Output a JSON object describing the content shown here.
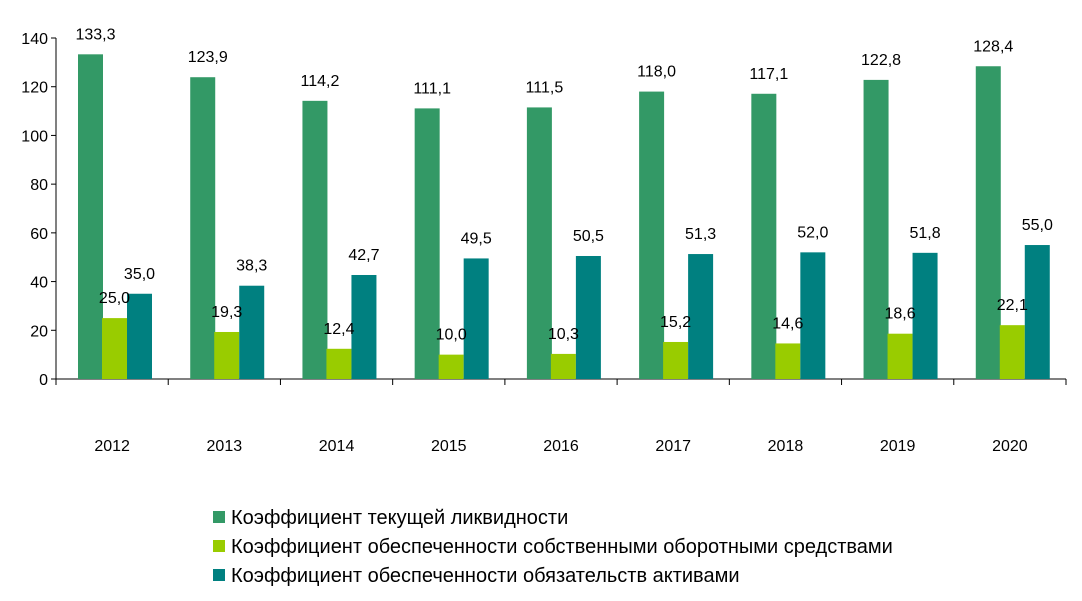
{
  "chart_data": {
    "type": "bar",
    "categories": [
      "2012",
      "2013",
      "2014",
      "2015",
      "2016",
      "2017",
      "2018",
      "2019",
      "2020"
    ],
    "series": [
      {
        "name": "Коэффициент текущей ликвидности",
        "color": "#339966",
        "values": [
          133.3,
          123.9,
          114.2,
          111.1,
          111.5,
          118.0,
          117.1,
          122.8,
          128.4
        ],
        "labels": [
          "133,3",
          "123,9",
          "114,2",
          "111,1",
          "111,5",
          "118,0",
          "117,1",
          "122,8",
          "128,4"
        ]
      },
      {
        "name": "Коэффициент обеспеченности собственными оборотными средствами",
        "color": "#99CC00",
        "values": [
          25.0,
          19.3,
          12.4,
          10.0,
          10.3,
          15.2,
          14.6,
          18.6,
          22.1
        ],
        "labels": [
          "25,0",
          "19,3",
          "12,4",
          "10,0",
          "10,3",
          "15,2",
          "14,6",
          "18,6",
          "22,1"
        ]
      },
      {
        "name": "Коэффициент обеспеченности обязательств активами",
        "color": "#008080",
        "values": [
          35.0,
          38.3,
          42.7,
          49.5,
          50.5,
          51.3,
          52.0,
          51.8,
          55.0
        ],
        "labels": [
          "35,0",
          "38,3",
          "42,7",
          "49,5",
          "50,5",
          "51,3",
          "52,0",
          "51,8",
          "55,0"
        ]
      }
    ],
    "yticks": [
      "0",
      "20",
      "40",
      "60",
      "80",
      "100",
      "120",
      "140"
    ],
    "ylim": [
      0,
      140
    ],
    "grid": false,
    "legend_position": "bottom",
    "title": "",
    "xlabel": "",
    "ylabel": ""
  }
}
